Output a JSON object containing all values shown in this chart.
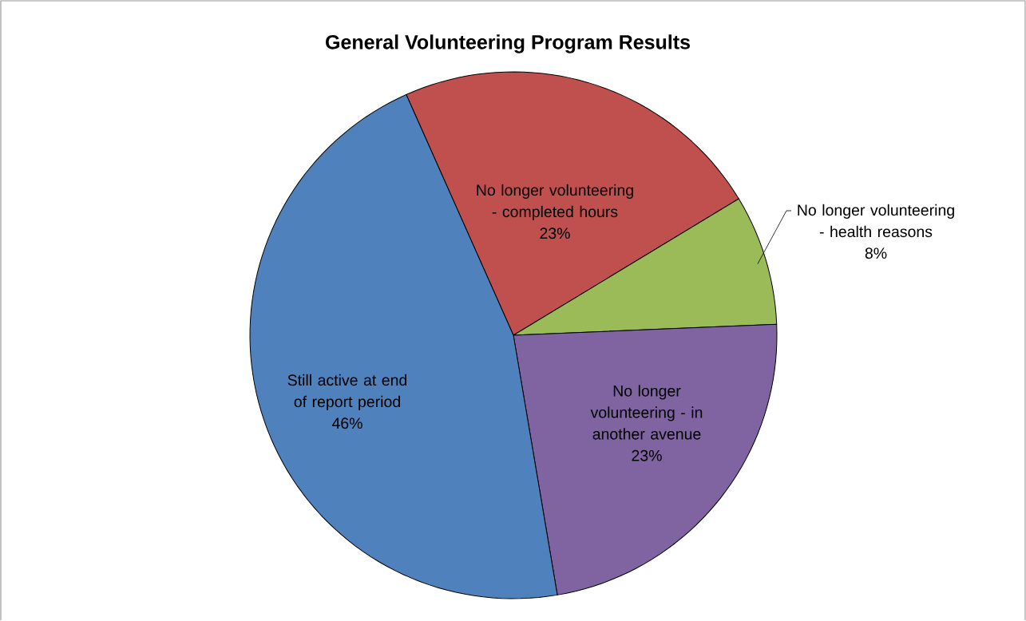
{
  "chart_data": {
    "type": "pie",
    "title": "General Volunteering Program Results",
    "categories": [
      "No longer volunteering - completed hours",
      "No longer volunteering - health reasons",
      "No longer volunteering - in another avenue",
      "Still active at end of report period"
    ],
    "values": [
      23,
      8,
      23,
      46
    ],
    "value_labels": [
      "23%",
      "8%",
      "23%",
      "46%"
    ],
    "colors": [
      "#c0504d",
      "#9bbb59",
      "#8064a2",
      "#4f81bd"
    ]
  }
}
